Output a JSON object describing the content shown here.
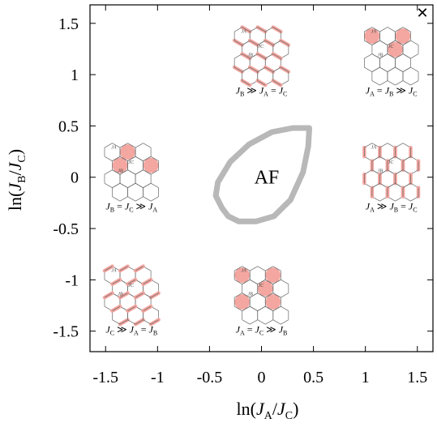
{
  "window": {
    "close_glyph": "✕"
  },
  "chart_data": {
    "type": "diagram-phase",
    "xlabel_main": "ln(",
    "xlabel_J1": "J",
    "xlabel_s1": "A",
    "xlabel_slash": "/",
    "xlabel_J2": "J",
    "xlabel_s2": "C",
    "xlabel_end": ")",
    "ylabel_main": "ln(",
    "ylabel_J1": "J",
    "ylabel_s1": "B",
    "ylabel_slash": "/",
    "ylabel_J2": "J",
    "ylabel_s2": "C",
    "ylabel_end": ")",
    "xlim": [
      -1.65,
      1.65
    ],
    "ylim": [
      -1.7,
      1.68
    ],
    "xticks": [
      -1.5,
      -1,
      -0.5,
      0,
      0.5,
      1,
      1.5
    ],
    "xtick_labels": [
      "-1.5",
      "-1",
      "-0.5",
      "0",
      "0.5",
      "1",
      "1.5"
    ],
    "yticks": [
      -1.5,
      -1,
      -0.5,
      0,
      0.5,
      1,
      1.5
    ],
    "ytick_labels": [
      "-1.5",
      "-1",
      "-0.5",
      "0",
      "0.5",
      "1",
      "1.5"
    ],
    "af_region": {
      "label": "AF",
      "boundary": [
        [
          -0.38,
          -0.3
        ],
        [
          -0.32,
          -0.38
        ],
        [
          -0.22,
          -0.43
        ],
        [
          -0.05,
          -0.43
        ],
        [
          0.12,
          -0.38
        ],
        [
          0.28,
          -0.22
        ],
        [
          0.4,
          0.05
        ],
        [
          0.45,
          0.3
        ],
        [
          0.46,
          0.48
        ],
        [
          0.3,
          0.48
        ],
        [
          0.1,
          0.44
        ],
        [
          -0.12,
          0.32
        ],
        [
          -0.3,
          0.15
        ],
        [
          -0.42,
          -0.05
        ],
        [
          -0.44,
          -0.18
        ]
      ]
    },
    "regions": [
      {
        "name": "dimer-B",
        "label": "J_B ≫ J_A = J_C",
        "label_parts": [
          "J",
          "B",
          " ≫ ",
          "J",
          "A",
          " = ",
          "J",
          "C"
        ],
        "x": 0,
        "y": 1.18,
        "pattern": "dimer-A"
      },
      {
        "name": "plaquette-C",
        "label": "J_A = J_B ≫ J_C",
        "label_parts": [
          "J",
          "A",
          " = ",
          "J",
          "B",
          " ≫ ",
          "J",
          "C"
        ],
        "x": 1.25,
        "y": 1.18,
        "pattern": "plaq-1"
      },
      {
        "name": "plaquette-A",
        "label": "J_B = J_C ≫ J_A",
        "label_parts": [
          "J",
          "B",
          " = ",
          "J",
          "C",
          " ≫ ",
          "J",
          "A"
        ],
        "x": -1.25,
        "y": 0.05,
        "pattern": "plaq-2"
      },
      {
        "name": "dimer-A",
        "label": "J_A ≫ J_B = J_C",
        "label_parts": [
          "J",
          "A",
          " ≫ ",
          "J",
          "B",
          " = ",
          "J",
          "C"
        ],
        "x": 1.25,
        "y": 0.05,
        "pattern": "dimer-B"
      },
      {
        "name": "plaquette-B",
        "label": "J_A = J_C ≫ J_B",
        "label_parts": [
          "J",
          "A",
          " = ",
          "J",
          "C",
          " ≫ ",
          "J",
          "B"
        ],
        "x": 0,
        "y": -1.15,
        "pattern": "plaq-3"
      },
      {
        "name": "dimer-C",
        "label": "J_C ≫ J_A = J_B",
        "label_parts": [
          "J",
          "C",
          " ≫ ",
          "J",
          "A",
          " = ",
          "J",
          "B"
        ],
        "x": -1.25,
        "y": -1.15,
        "pattern": "dimer-C"
      }
    ],
    "coupling_labels": [
      "J",
      "A",
      "B",
      "C"
    ],
    "colors": {
      "frame": "#000000",
      "af_boundary": "#b8b8b8",
      "highlight": "#f4a6a0",
      "bond": "#666666"
    },
    "grid": false,
    "legend": "none"
  }
}
